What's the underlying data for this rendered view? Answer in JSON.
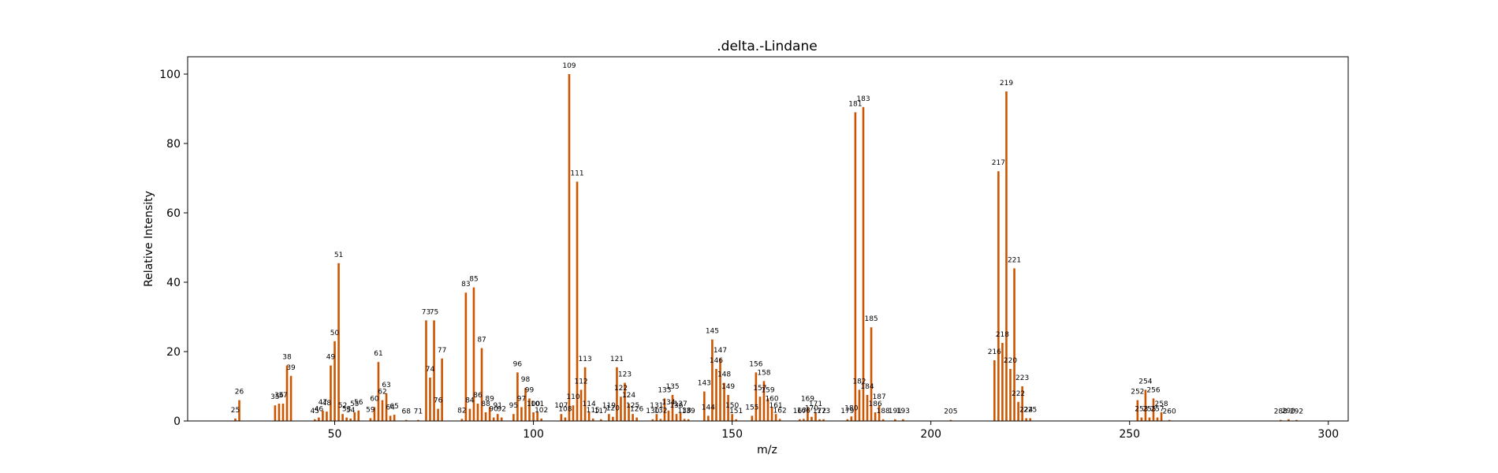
{
  "chart_data": {
    "type": "bar",
    "title": ".delta.-Lindane",
    "xlabel": "m/z",
    "ylabel": "Relative Intensity",
    "xlim": [
      13,
      305
    ],
    "ylim": [
      0,
      105
    ],
    "xticks": [
      50,
      100,
      150,
      200,
      250,
      300
    ],
    "yticks": [
      0,
      20,
      40,
      60,
      80,
      100
    ],
    "grid": false,
    "bar_color": "#cc5500",
    "points": [
      {
        "x": 25,
        "y": 0.7,
        "label": "25"
      },
      {
        "x": 26,
        "y": 6,
        "label": "26"
      },
      {
        "x": 35,
        "y": 4.5,
        "label": "35"
      },
      {
        "x": 36,
        "y": 5,
        "label": "36"
      },
      {
        "x": 37,
        "y": 5,
        "label": "37"
      },
      {
        "x": 38,
        "y": 16,
        "label": "38"
      },
      {
        "x": 39,
        "y": 13,
        "label": "39"
      },
      {
        "x": 45,
        "y": 0.5,
        "label": "45"
      },
      {
        "x": 46,
        "y": 1,
        "label": "46"
      },
      {
        "x": 47,
        "y": 3,
        "label": "47"
      },
      {
        "x": 48,
        "y": 2.7,
        "label": "48"
      },
      {
        "x": 49,
        "y": 16,
        "label": "49"
      },
      {
        "x": 50,
        "y": 23,
        "label": "50"
      },
      {
        "x": 51,
        "y": 45.5,
        "label": "51"
      },
      {
        "x": 52,
        "y": 2,
        "label": "52"
      },
      {
        "x": 53,
        "y": 1,
        "label": "53"
      },
      {
        "x": 54,
        "y": 0.7,
        "label": "54"
      },
      {
        "x": 55,
        "y": 2.5,
        "label": "55"
      },
      {
        "x": 56,
        "y": 3,
        "label": "56"
      },
      {
        "x": 59,
        "y": 0.8,
        "label": "59"
      },
      {
        "x": 60,
        "y": 4,
        "label": "60"
      },
      {
        "x": 61,
        "y": 17,
        "label": "61"
      },
      {
        "x": 62,
        "y": 6,
        "label": "62"
      },
      {
        "x": 63,
        "y": 8,
        "label": "63"
      },
      {
        "x": 64,
        "y": 1.5,
        "label": "64"
      },
      {
        "x": 65,
        "y": 1.8,
        "label": "65"
      },
      {
        "x": 68,
        "y": 0.3,
        "label": "68"
      },
      {
        "x": 71,
        "y": 0.3,
        "label": "71"
      },
      {
        "x": 73,
        "y": 29,
        "label": "73"
      },
      {
        "x": 74,
        "y": 12.5,
        "label": "74"
      },
      {
        "x": 75,
        "y": 29,
        "label": "75"
      },
      {
        "x": 76,
        "y": 3.5,
        "label": "76"
      },
      {
        "x": 77,
        "y": 18,
        "label": "77"
      },
      {
        "x": 82,
        "y": 0.6,
        "label": "82"
      },
      {
        "x": 83,
        "y": 37,
        "label": "83"
      },
      {
        "x": 84,
        "y": 3.5,
        "label": "84"
      },
      {
        "x": 85,
        "y": 38.5,
        "label": "85"
      },
      {
        "x": 86,
        "y": 5,
        "label": "86"
      },
      {
        "x": 87,
        "y": 21,
        "label": "87"
      },
      {
        "x": 88,
        "y": 2.5,
        "label": "88"
      },
      {
        "x": 89,
        "y": 4,
        "label": "89"
      },
      {
        "x": 90,
        "y": 1,
        "label": "90"
      },
      {
        "x": 91,
        "y": 2,
        "label": "91"
      },
      {
        "x": 92,
        "y": 1,
        "label": "92"
      },
      {
        "x": 95,
        "y": 2,
        "label": "95"
      },
      {
        "x": 96,
        "y": 14,
        "label": "96"
      },
      {
        "x": 97,
        "y": 4,
        "label": "97"
      },
      {
        "x": 98,
        "y": 9.5,
        "label": "98"
      },
      {
        "x": 99,
        "y": 6.5,
        "label": "99"
      },
      {
        "x": 100,
        "y": 2.5,
        "label": "100"
      },
      {
        "x": 101,
        "y": 2.5,
        "label": "101"
      },
      {
        "x": 102,
        "y": 0.7,
        "label": "102"
      },
      {
        "x": 107,
        "y": 2,
        "label": "107"
      },
      {
        "x": 108,
        "y": 1,
        "label": "108"
      },
      {
        "x": 109,
        "y": 100,
        "label": "109"
      },
      {
        "x": 110,
        "y": 4.5,
        "label": "110"
      },
      {
        "x": 111,
        "y": 69,
        "label": "111"
      },
      {
        "x": 112,
        "y": 9,
        "label": "112"
      },
      {
        "x": 113,
        "y": 15.5,
        "label": "113"
      },
      {
        "x": 114,
        "y": 2.5,
        "label": "114"
      },
      {
        "x": 115,
        "y": 0.7,
        "label": "115"
      },
      {
        "x": 117,
        "y": 0.5,
        "label": "117"
      },
      {
        "x": 119,
        "y": 2,
        "label": "119"
      },
      {
        "x": 120,
        "y": 1.2,
        "label": "120"
      },
      {
        "x": 121,
        "y": 15.5,
        "label": "121"
      },
      {
        "x": 122,
        "y": 7,
        "label": "122"
      },
      {
        "x": 123,
        "y": 11,
        "label": "123"
      },
      {
        "x": 124,
        "y": 5,
        "label": "124"
      },
      {
        "x": 125,
        "y": 2,
        "label": "125"
      },
      {
        "x": 126,
        "y": 1,
        "label": "126"
      },
      {
        "x": 130,
        "y": 0.5,
        "label": "130"
      },
      {
        "x": 131,
        "y": 2,
        "label": "131"
      },
      {
        "x": 132,
        "y": 0.6,
        "label": "132"
      },
      {
        "x": 133,
        "y": 6.5,
        "label": "133"
      },
      {
        "x": 134,
        "y": 3,
        "label": "134"
      },
      {
        "x": 135,
        "y": 7.5,
        "label": "135"
      },
      {
        "x": 136,
        "y": 2,
        "label": "136"
      },
      {
        "x": 137,
        "y": 2.5,
        "label": "137"
      },
      {
        "x": 138,
        "y": 0.6,
        "label": "138"
      },
      {
        "x": 139,
        "y": 0.5,
        "label": "139"
      },
      {
        "x": 143,
        "y": 8.5,
        "label": "143"
      },
      {
        "x": 144,
        "y": 1.5,
        "label": "144"
      },
      {
        "x": 145,
        "y": 23.5,
        "label": "145"
      },
      {
        "x": 146,
        "y": 15,
        "label": "146"
      },
      {
        "x": 147,
        "y": 18,
        "label": "147"
      },
      {
        "x": 148,
        "y": 11,
        "label": "148"
      },
      {
        "x": 149,
        "y": 7.5,
        "label": "149"
      },
      {
        "x": 150,
        "y": 2,
        "label": "150"
      },
      {
        "x": 151,
        "y": 0.5,
        "label": "151"
      },
      {
        "x": 155,
        "y": 1.5,
        "label": "155"
      },
      {
        "x": 156,
        "y": 14,
        "label": "156"
      },
      {
        "x": 157,
        "y": 7,
        "label": "157"
      },
      {
        "x": 158,
        "y": 11.5,
        "label": "158"
      },
      {
        "x": 159,
        "y": 6.5,
        "label": "159"
      },
      {
        "x": 160,
        "y": 4,
        "label": "160"
      },
      {
        "x": 161,
        "y": 2,
        "label": "161"
      },
      {
        "x": 162,
        "y": 0.6,
        "label": "162"
      },
      {
        "x": 167,
        "y": 0.5,
        "label": "167"
      },
      {
        "x": 168,
        "y": 0.6,
        "label": "168"
      },
      {
        "x": 169,
        "y": 4,
        "label": "169"
      },
      {
        "x": 170,
        "y": 1.2,
        "label": "170"
      },
      {
        "x": 171,
        "y": 2.5,
        "label": "171"
      },
      {
        "x": 172,
        "y": 0.5,
        "label": "172"
      },
      {
        "x": 173,
        "y": 0.5,
        "label": "173"
      },
      {
        "x": 179,
        "y": 0.5,
        "label": "179"
      },
      {
        "x": 180,
        "y": 1.3,
        "label": "180"
      },
      {
        "x": 181,
        "y": 89,
        "label": "181"
      },
      {
        "x": 182,
        "y": 9,
        "label": "182"
      },
      {
        "x": 183,
        "y": 90.5,
        "label": "183"
      },
      {
        "x": 184,
        "y": 7.5,
        "label": "184"
      },
      {
        "x": 185,
        "y": 27,
        "label": "185"
      },
      {
        "x": 186,
        "y": 2.5,
        "label": "186"
      },
      {
        "x": 187,
        "y": 4.5,
        "label": "187"
      },
      {
        "x": 188,
        "y": 0.5,
        "label": "188"
      },
      {
        "x": 191,
        "y": 0.5,
        "label": "191"
      },
      {
        "x": 193,
        "y": 0.5,
        "label": "193"
      },
      {
        "x": 205,
        "y": 0.3,
        "label": "205"
      },
      {
        "x": 216,
        "y": 17.5,
        "label": "216"
      },
      {
        "x": 217,
        "y": 72,
        "label": "217"
      },
      {
        "x": 218,
        "y": 22.5,
        "label": "218"
      },
      {
        "x": 219,
        "y": 95,
        "label": "219"
      },
      {
        "x": 220,
        "y": 15,
        "label": "220"
      },
      {
        "x": 221,
        "y": 44,
        "label": "221"
      },
      {
        "x": 222,
        "y": 5.5,
        "label": "222"
      },
      {
        "x": 223,
        "y": 10,
        "label": "223"
      },
      {
        "x": 224,
        "y": 0.8,
        "label": "224"
      },
      {
        "x": 225,
        "y": 0.8,
        "label": "225"
      },
      {
        "x": 252,
        "y": 6,
        "label": "252"
      },
      {
        "x": 253,
        "y": 1,
        "label": "253"
      },
      {
        "x": 254,
        "y": 9,
        "label": "254"
      },
      {
        "x": 255,
        "y": 1,
        "label": "255"
      },
      {
        "x": 256,
        "y": 6.5,
        "label": "256"
      },
      {
        "x": 257,
        "y": 1,
        "label": "257"
      },
      {
        "x": 258,
        "y": 2.5,
        "label": "258"
      },
      {
        "x": 260,
        "y": 0.3,
        "label": "260"
      },
      {
        "x": 288,
        "y": 0.3,
        "label": "288"
      },
      {
        "x": 290,
        "y": 0.5,
        "label": "290"
      },
      {
        "x": 292,
        "y": 0.3,
        "label": "292"
      }
    ]
  }
}
